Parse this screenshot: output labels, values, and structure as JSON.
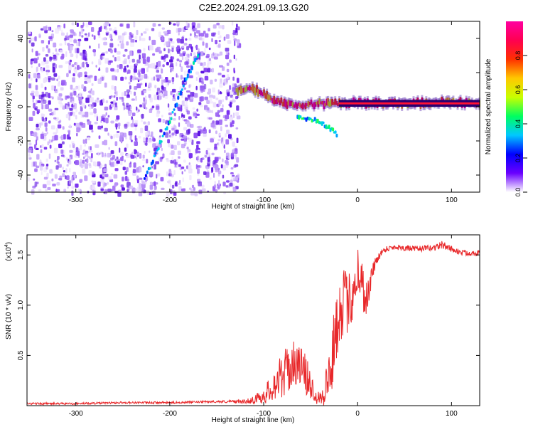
{
  "title": "C2E2.2024.291.09.13.G20",
  "chart_data": [
    {
      "type": "heatmap",
      "name": "spectrogram",
      "xlabel": "Height of straight line (km)",
      "ylabel": "Frequency (Hz)",
      "xlim": [
        -352,
        130
      ],
      "ylim": [
        -50,
        50
      ],
      "xticks": [
        -300,
        -200,
        -100,
        0,
        100
      ],
      "yticks": [
        -40,
        -20,
        0,
        20,
        40
      ],
      "colorbar": {
        "label": "Normalized spectral amplitude",
        "range": [
          0,
          1
        ],
        "ticks": [
          0.0,
          0.2,
          0.4,
          0.6,
          0.8
        ],
        "tick_labels": [
          "0.0",
          "0.2",
          "0.4",
          "0.6",
          "0.8"
        ],
        "colormap": [
          "#ffffff",
          "#6a00ff",
          "#0000ff",
          "#00c8ff",
          "#00ff60",
          "#c8ff00",
          "#ffc800",
          "#ff3000",
          "#ff0050",
          "#ff00a0"
        ]
      },
      "features": [
        {
          "name": "noise band",
          "x_range": [
            -352,
            -128
          ],
          "y_range": [
            -50,
            50
          ],
          "amplitude": 0.2
        },
        {
          "name": "tilted line",
          "points": [
            [
              -228,
              -43
            ],
            [
              -210,
              -20
            ],
            [
              -195,
              0
            ],
            [
              -185,
              15
            ],
            [
              -168,
              33
            ]
          ],
          "amplitude": 0.35
        },
        {
          "name": "carrier line",
          "points": [
            [
              -130,
              10
            ],
            [
              -110,
              10
            ],
            [
              -90,
              4
            ],
            [
              -70,
              1
            ],
            [
              -40,
              2
            ],
            [
              -10,
              2
            ],
            [
              20,
              2
            ],
            [
              60,
              2
            ],
            [
              90,
              3
            ],
            [
              130,
              2
            ]
          ],
          "amplitude": 0.9
        },
        {
          "name": "descending branch",
          "points": [
            [
              -65,
              -6
            ],
            [
              -45,
              -8
            ],
            [
              -30,
              -13
            ],
            [
              -22,
              -17
            ]
          ],
          "amplitude": 0.4
        }
      ]
    },
    {
      "type": "line",
      "name": "snr",
      "xlabel": "Height of straight line (km)",
      "ylabel": "SNR (10 * v/v)",
      "multiplier_label": "(x10",
      "multiplier_exp": "4",
      "xlim": [
        -352,
        130
      ],
      "ylim": [
        0,
        1.7
      ],
      "xticks": [
        -300,
        -200,
        -100,
        0,
        100
      ],
      "yticks": [
        0.5,
        1.0,
        1.5
      ],
      "ytick_labels": [
        "0.5",
        "1.0",
        "1.5"
      ],
      "color": "#e8282a",
      "series": [
        {
          "name": "SNR",
          "x": [
            -352,
            -300,
            -250,
            -200,
            -150,
            -120,
            -110,
            -100,
            -95,
            -90,
            -85,
            -80,
            -75,
            -70,
            -65,
            -60,
            -55,
            -50,
            -45,
            -40,
            -35,
            -30,
            -25,
            -20,
            -15,
            -10,
            -5,
            0,
            5,
            10,
            15,
            20,
            25,
            30,
            40,
            60,
            80,
            90,
            100,
            110,
            120,
            130
          ],
          "y": [
            0.02,
            0.02,
            0.03,
            0.03,
            0.04,
            0.04,
            0.06,
            0.1,
            0.14,
            0.2,
            0.25,
            0.3,
            0.35,
            0.4,
            0.42,
            0.38,
            0.3,
            0.2,
            0.12,
            0.08,
            0.15,
            0.3,
            0.6,
            0.95,
            1.05,
            1.0,
            1.15,
            1.35,
            1.2,
            1.05,
            1.3,
            1.45,
            1.52,
            1.56,
            1.58,
            1.56,
            1.57,
            1.6,
            1.56,
            1.52,
            1.52,
            1.52
          ]
        }
      ],
      "spread": [
        0.01,
        0.01,
        0.01,
        0.01,
        0.01,
        0.02,
        0.04,
        0.08,
        0.12,
        0.15,
        0.2,
        0.22,
        0.25,
        0.25,
        0.2,
        0.22,
        0.2,
        0.15,
        0.1,
        0.08,
        0.2,
        0.3,
        0.35,
        0.35,
        0.35,
        0.3,
        0.3,
        0.3,
        0.25,
        0.2,
        0.1,
        0.05,
        0.04,
        0.03,
        0.03,
        0.03,
        0.03,
        0.04,
        0.03,
        0.03,
        0.03,
        0.03
      ]
    }
  ]
}
